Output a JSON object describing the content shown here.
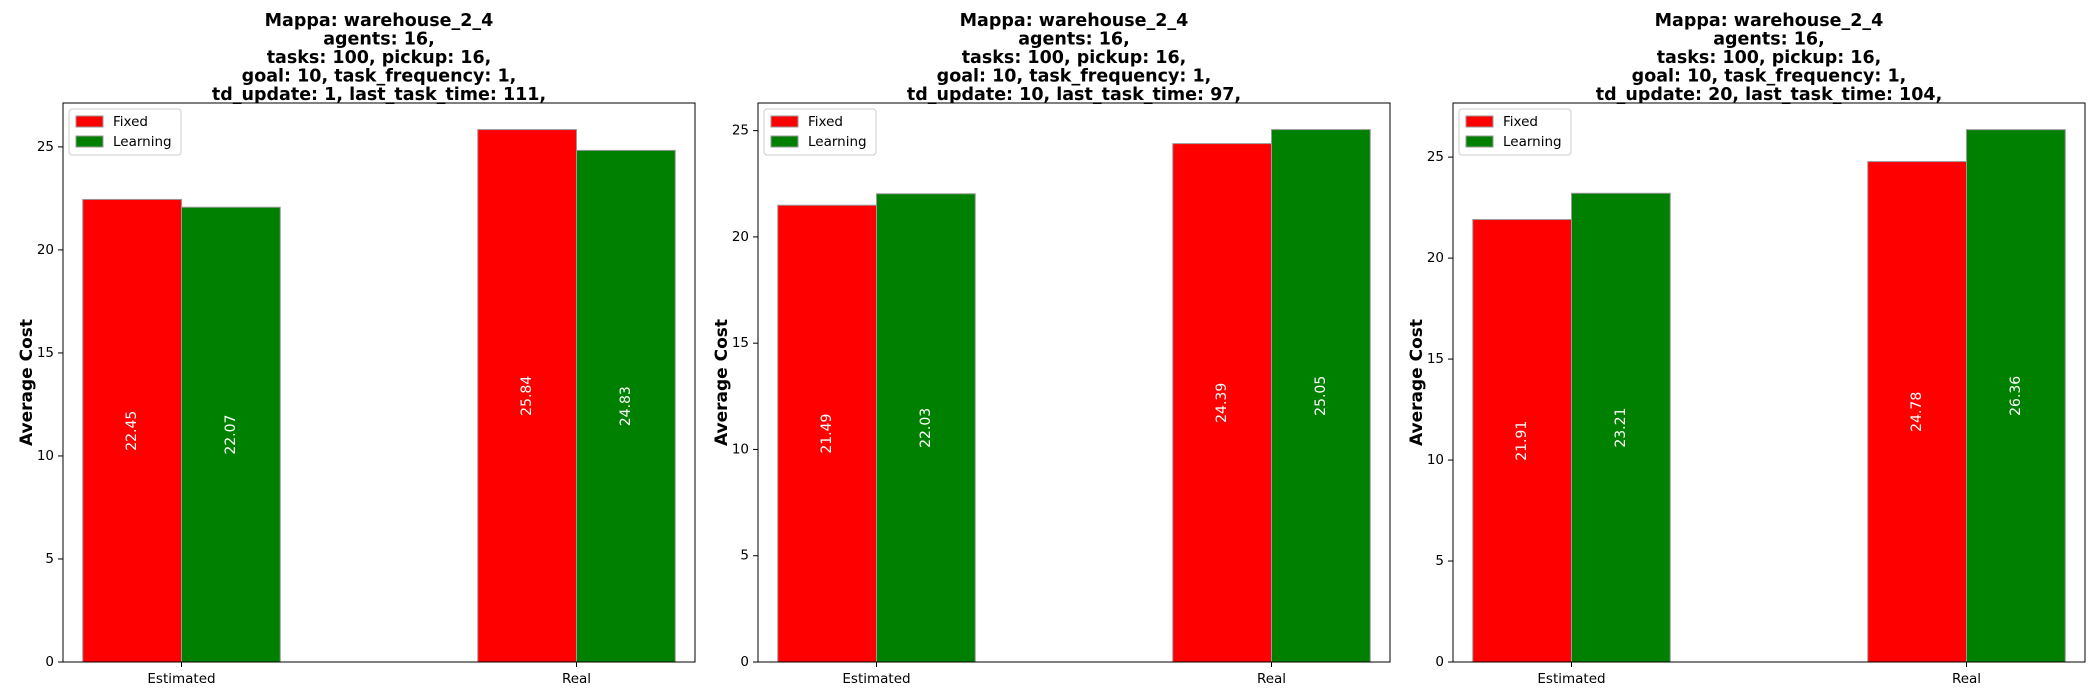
{
  "colors": {
    "fixed": "#ff0000",
    "learning": "#008000",
    "bar_edge": "#999999"
  },
  "chart_data": [
    {
      "type": "bar",
      "title_lines": [
        "Mappa: warehouse_2_4",
        "agents: 16,",
        "tasks: 100, pickup: 16,",
        "goal: 10, task_frequency: 1,",
        "td_update: 1, last_task_time: 111,"
      ],
      "categories": [
        "Estimated",
        "Real"
      ],
      "series": [
        {
          "name": "Fixed",
          "values": [
            22.45,
            25.84
          ],
          "labels": [
            "22.45",
            "25.84"
          ]
        },
        {
          "name": "Learning",
          "values": [
            22.07,
            24.83
          ],
          "labels": [
            "22.07",
            "24.83"
          ]
        }
      ],
      "xlabel": "",
      "ylabel": "Average Cost",
      "ylim": [
        0,
        27.13
      ],
      "yticks": [
        0,
        5,
        10,
        15,
        20,
        25
      ],
      "legend": "upper-left",
      "grid": false
    },
    {
      "type": "bar",
      "title_lines": [
        "Mappa: warehouse_2_4",
        "agents: 16,",
        "tasks: 100, pickup: 16,",
        "goal: 10, task_frequency: 1,",
        "td_update: 10, last_task_time: 97,"
      ],
      "categories": [
        "Estimated",
        "Real"
      ],
      "series": [
        {
          "name": "Fixed",
          "values": [
            21.49,
            24.39
          ],
          "labels": [
            "21.49",
            "24.39"
          ]
        },
        {
          "name": "Learning",
          "values": [
            22.03,
            25.05
          ],
          "labels": [
            "22.03",
            "25.05"
          ]
        }
      ],
      "xlabel": "",
      "ylabel": "Average Cost",
      "ylim": [
        0,
        26.3
      ],
      "yticks": [
        0,
        5,
        10,
        15,
        20,
        25
      ],
      "legend": "upper-left",
      "grid": false
    },
    {
      "type": "bar",
      "title_lines": [
        "Mappa: warehouse_2_4",
        "agents: 16,",
        "tasks: 100, pickup: 16,",
        "goal: 10, task_frequency: 1,",
        "td_update: 20, last_task_time: 104,"
      ],
      "categories": [
        "Estimated",
        "Real"
      ],
      "series": [
        {
          "name": "Fixed",
          "values": [
            21.91,
            24.78
          ],
          "labels": [
            "21.91",
            "24.78"
          ]
        },
        {
          "name": "Learning",
          "values": [
            23.21,
            26.36
          ],
          "labels": [
            "23.21",
            "26.36"
          ]
        }
      ],
      "xlabel": "",
      "ylabel": "Average Cost",
      "ylim": [
        0,
        27.68
      ],
      "yticks": [
        0,
        5,
        10,
        15,
        20,
        25
      ],
      "legend": "upper-left",
      "grid": false
    }
  ]
}
